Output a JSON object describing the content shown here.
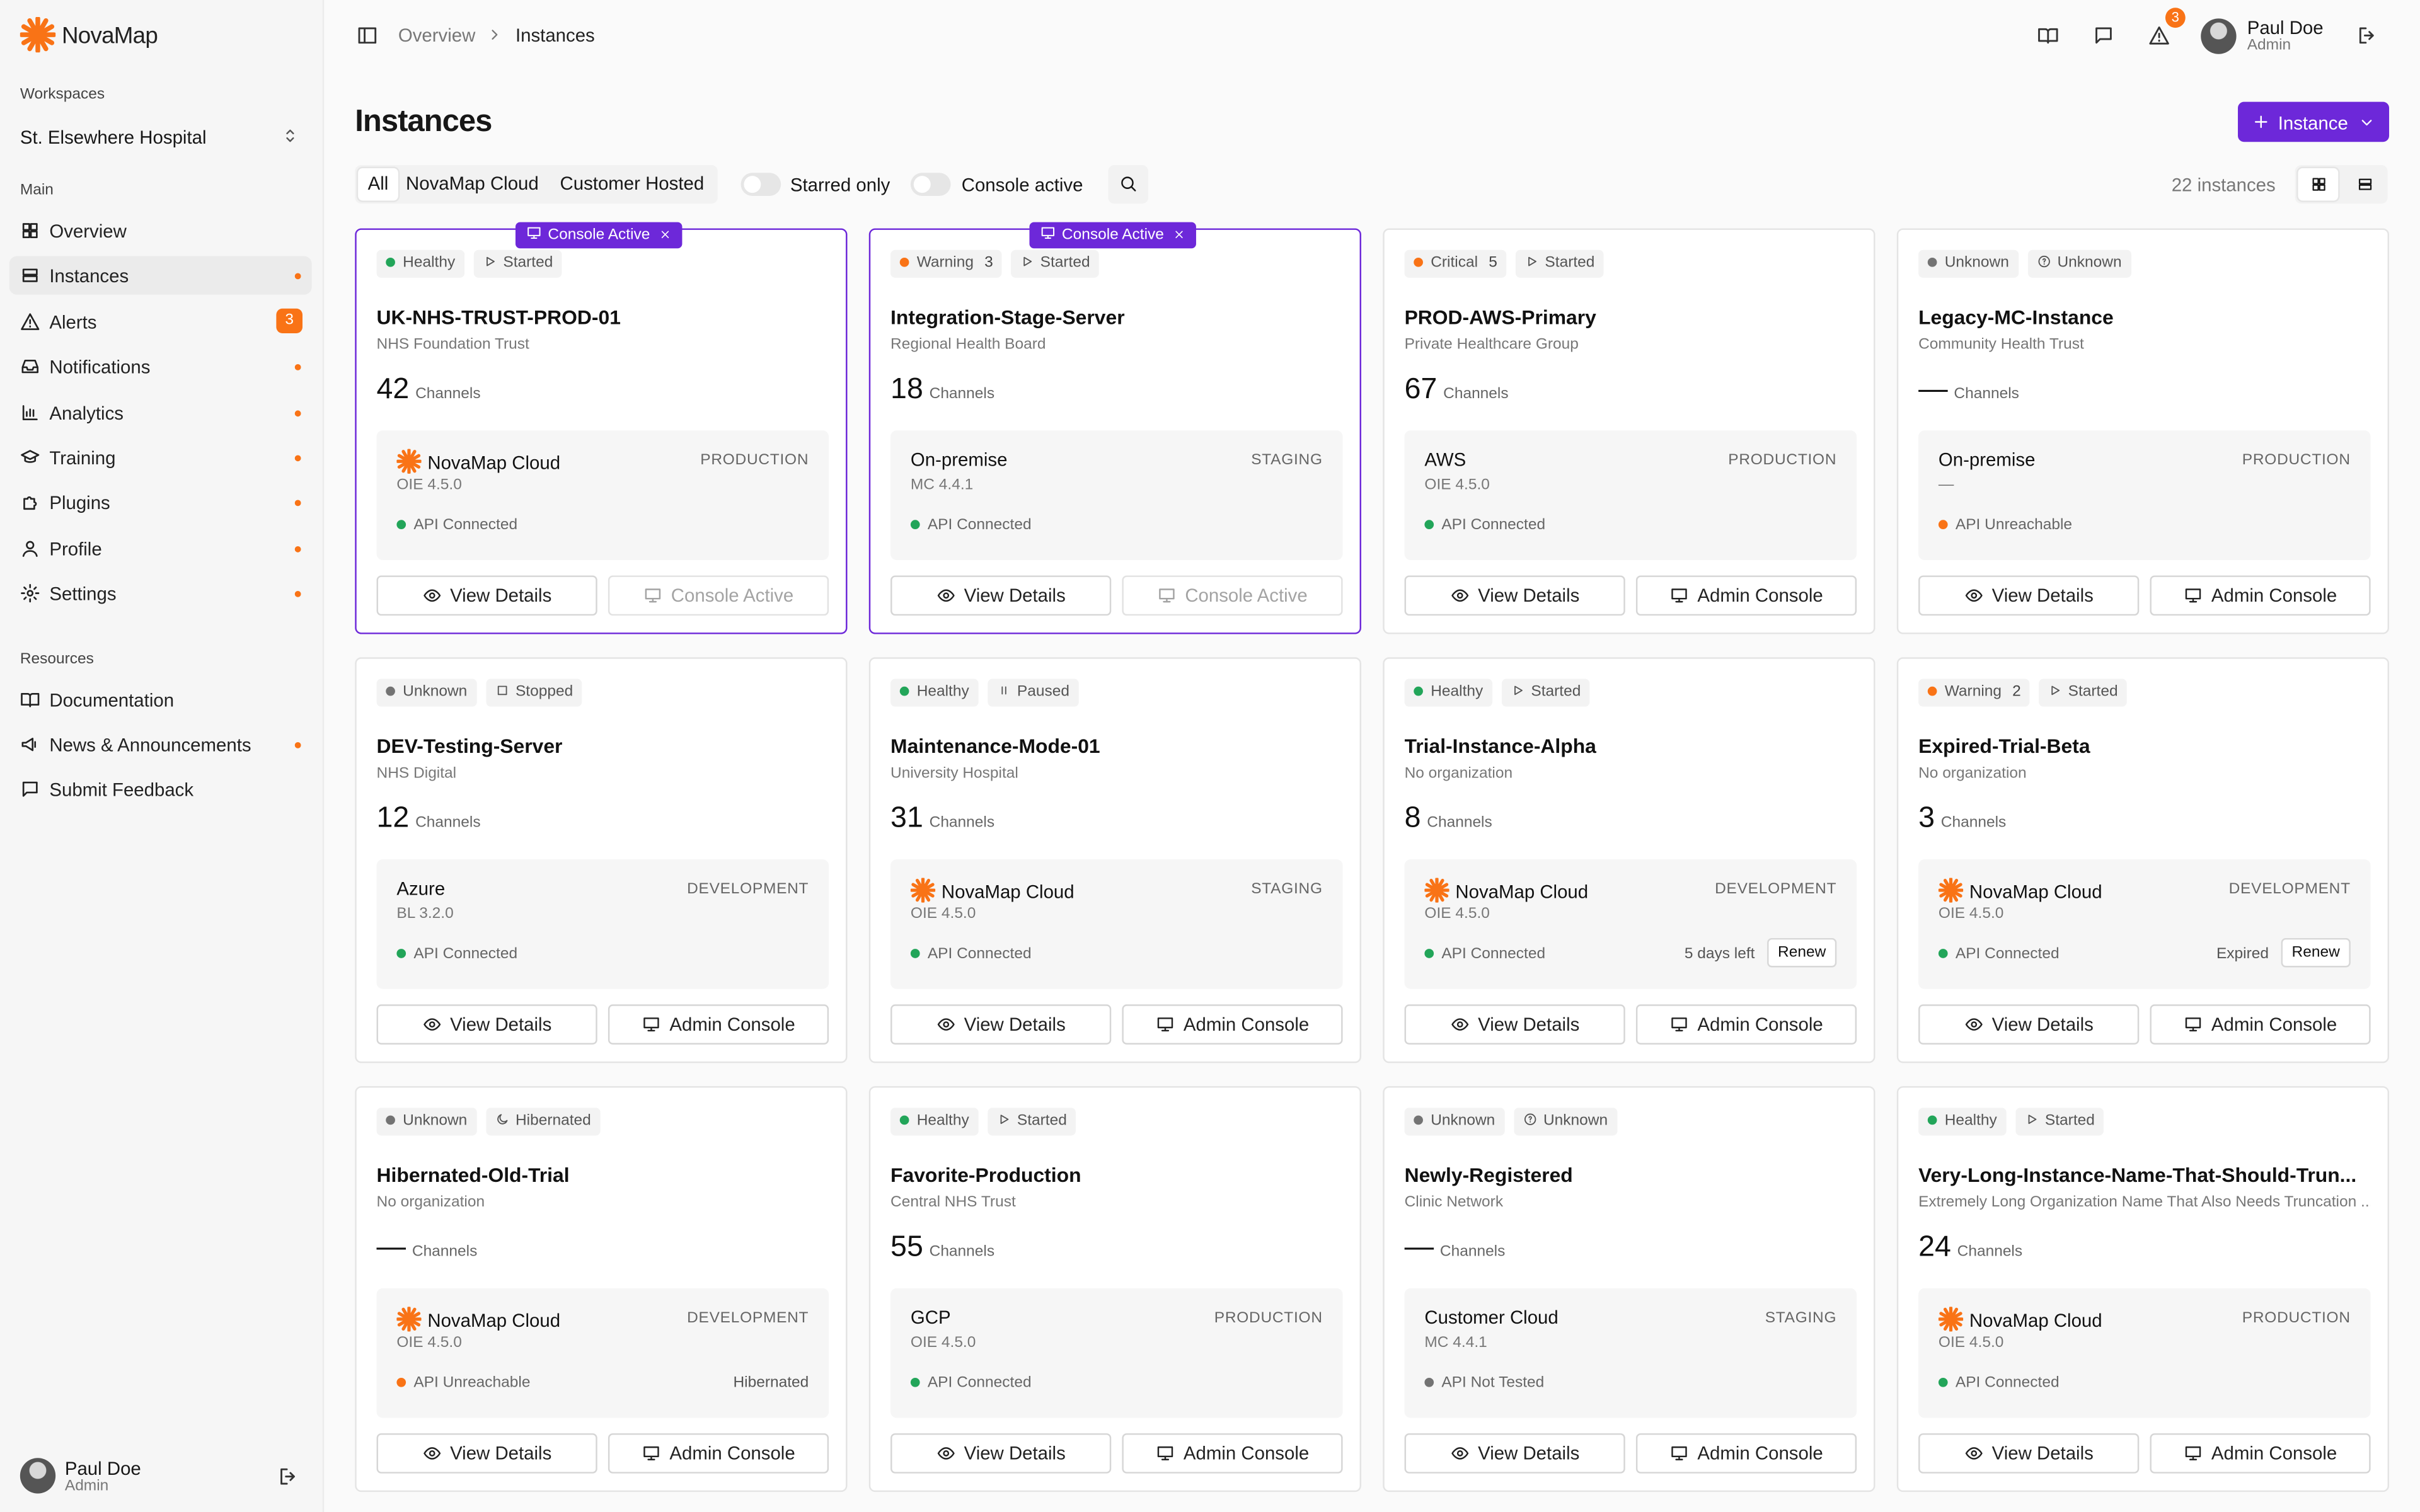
{
  "brand": "NovaMap",
  "breadcrumb": [
    "Overview",
    "Instances"
  ],
  "header": {
    "alert_count": 3,
    "user": {
      "name": "Paul Doe",
      "role": "Admin"
    }
  },
  "sidebar": {
    "workspaces_label": "Workspaces",
    "workspace": "St. Elsewhere Hospital",
    "sections": [
      {
        "title": "Main",
        "items": [
          {
            "label": "Overview",
            "icon": "grid"
          },
          {
            "label": "Instances",
            "icon": "list",
            "active": true,
            "dot": true
          },
          {
            "label": "Alerts",
            "icon": "alert",
            "badge": 3
          },
          {
            "label": "Notifications",
            "icon": "inbox",
            "dot": true
          },
          {
            "label": "Analytics",
            "icon": "chart",
            "dot": true
          },
          {
            "label": "Training",
            "icon": "cap",
            "dot": true
          },
          {
            "label": "Plugins",
            "icon": "puzzle",
            "dot": true
          },
          {
            "label": "Profile",
            "icon": "user",
            "dot": true
          },
          {
            "label": "Settings",
            "icon": "gear",
            "dot": true
          }
        ]
      },
      {
        "title": "Resources",
        "items": [
          {
            "label": "Documentation",
            "icon": "book"
          },
          {
            "label": "News & Announcements",
            "icon": "megaphone",
            "dot": true
          },
          {
            "label": "Submit Feedback",
            "icon": "msg"
          }
        ]
      }
    ],
    "user": {
      "name": "Paul Doe",
      "role": "Admin"
    }
  },
  "page": {
    "title": "Instances",
    "new_button": "Instance",
    "tabs": [
      "All",
      "NovaMap Cloud",
      "Customer Hosted"
    ],
    "toggles": [
      "Starred only",
      "Console active"
    ],
    "count": "22 instances"
  },
  "labels": {
    "channels": "Channels",
    "view_details": "View Details",
    "admin_console": "Admin Console",
    "console_active": "Console Active",
    "renew": "Renew"
  },
  "instances": [
    {
      "status": "Healthy",
      "status_color": "#22a559",
      "state": "Started",
      "state_icon": "play",
      "name": "UK-NHS-TRUST-PROD-01",
      "org": "NHS Foundation Trust",
      "channels": 42,
      "host": "NovaMap Cloud",
      "logo": true,
      "env": "PRODUCTION",
      "version": "OIE 4.5.0",
      "api": "API Connected",
      "api_color": "#22a559",
      "console_active": true
    },
    {
      "status": "Warning",
      "status_count": 3,
      "status_color": "#f97316",
      "state": "Started",
      "state_icon": "play",
      "name": "Integration-Stage-Server",
      "org": "Regional Health Board",
      "channels": 18,
      "host": "On-premise",
      "env": "STAGING",
      "version": "MC 4.4.1",
      "api": "API Connected",
      "api_color": "#22a559",
      "console_active": true
    },
    {
      "status": "Critical",
      "status_count": 5,
      "status_color": "#f97316",
      "state": "Started",
      "state_icon": "play",
      "name": "PROD-AWS-Primary",
      "org": "Private Healthcare Group",
      "channels": 67,
      "host": "AWS",
      "env": "PRODUCTION",
      "version": "OIE 4.5.0",
      "api": "API Connected",
      "api_color": "#22a559"
    },
    {
      "status": "Unknown",
      "status_color": "#737373",
      "state": "Unknown",
      "state_icon": "help",
      "name": "Legacy-MC-Instance",
      "org": "Community Health Trust",
      "channels": "—",
      "host": "On-premise",
      "env": "PRODUCTION",
      "version": "—",
      "api": "API Unreachable",
      "api_color": "#f97316"
    },
    {
      "status": "Unknown",
      "status_color": "#737373",
      "state": "Stopped",
      "state_icon": "square",
      "name": "DEV-Testing-Server",
      "org": "NHS Digital",
      "channels": 12,
      "host": "Azure",
      "env": "DEVELOPMENT",
      "version": "BL 3.2.0",
      "api": "API Connected",
      "api_color": "#22a559"
    },
    {
      "status": "Healthy",
      "status_color": "#22a559",
      "state": "Paused",
      "state_icon": "pause",
      "name": "Maintenance-Mode-01",
      "org": "University Hospital",
      "channels": 31,
      "host": "NovaMap Cloud",
      "logo": true,
      "env": "STAGING",
      "version": "OIE 4.5.0",
      "api": "API Connected",
      "api_color": "#22a559"
    },
    {
      "status": "Healthy",
      "status_color": "#22a559",
      "state": "Started",
      "state_icon": "play",
      "name": "Trial-Instance-Alpha",
      "org": "No organization",
      "channels": 8,
      "host": "NovaMap Cloud",
      "logo": true,
      "env": "DEVELOPMENT",
      "version": "OIE 4.5.0",
      "api": "API Connected",
      "api_color": "#22a559",
      "note": "5 days left",
      "renew": true
    },
    {
      "status": "Warning",
      "status_count": 2,
      "status_color": "#f97316",
      "state": "Started",
      "state_icon": "play",
      "name": "Expired-Trial-Beta",
      "org": "No organization",
      "channels": 3,
      "host": "NovaMap Cloud",
      "logo": true,
      "env": "DEVELOPMENT",
      "version": "OIE 4.5.0",
      "api": "API Connected",
      "api_color": "#22a559",
      "note": "Expired",
      "renew": true
    },
    {
      "status": "Unknown",
      "status_color": "#737373",
      "state": "Hibernated",
      "state_icon": "moon",
      "name": "Hibernated-Old-Trial",
      "org": "No organization",
      "channels": "—",
      "host": "NovaMap Cloud",
      "logo": true,
      "env": "DEVELOPMENT",
      "version": "OIE 4.5.0",
      "api": "API Unreachable",
      "api_color": "#f97316",
      "note": "Hibernated"
    },
    {
      "status": "Healthy",
      "status_color": "#22a559",
      "state": "Started",
      "state_icon": "play",
      "name": "Favorite-Production",
      "org": "Central NHS Trust",
      "channels": 55,
      "host": "GCP",
      "env": "PRODUCTION",
      "version": "OIE 4.5.0",
      "api": "API Connected",
      "api_color": "#22a559"
    },
    {
      "status": "Unknown",
      "status_color": "#737373",
      "state": "Unknown",
      "state_icon": "help",
      "name": "Newly-Registered",
      "org": "Clinic Network",
      "channels": "—",
      "host": "Customer Cloud",
      "env": "STAGING",
      "version": "MC 4.4.1",
      "api": "API Not Tested",
      "api_color": "#737373"
    },
    {
      "status": "Healthy",
      "status_color": "#22a559",
      "state": "Started",
      "state_icon": "play",
      "name": "Very-Long-Instance-Name-That-Should-Trun...",
      "org": "Extremely Long Organization Name That Also Needs Truncation ...",
      "channels": 24,
      "host": "NovaMap Cloud",
      "logo": true,
      "env": "PRODUCTION",
      "version": "OIE 4.5.0",
      "api": "API Connected",
      "api_color": "#22a559"
    }
  ]
}
